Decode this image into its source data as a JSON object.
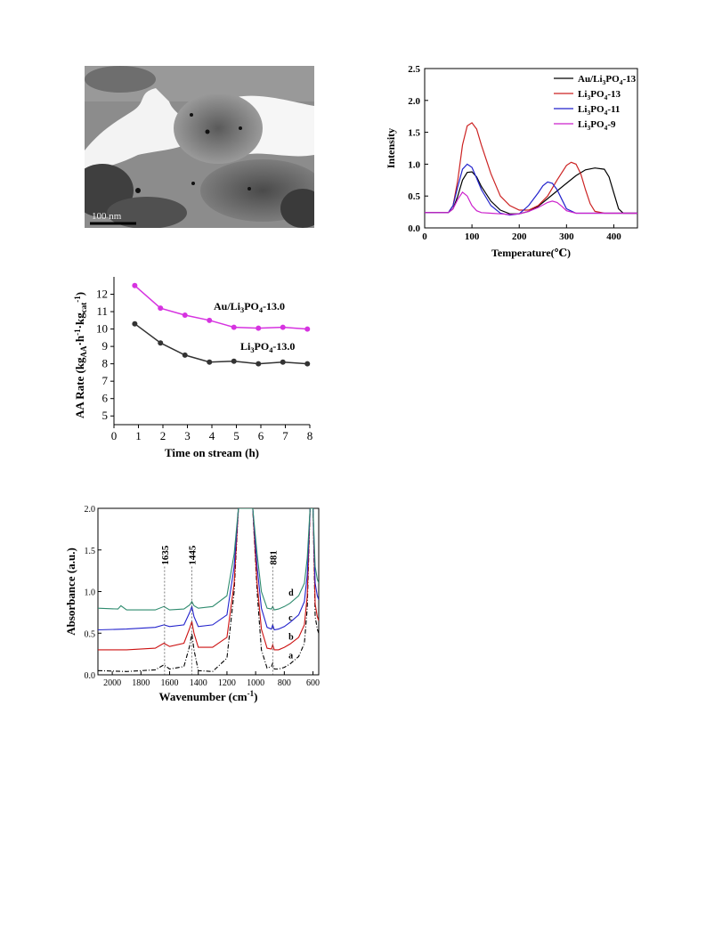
{
  "tem_image": {
    "scale_bar_label": "100 nm",
    "colors": {
      "background": "#8a8a8a",
      "dark": "#3a3a3a",
      "light": "#f2f2f2"
    }
  },
  "tpd_chart": {
    "chart_data": {
      "type": "line",
      "xlabel": "Temperature(℃)",
      "ylabel": "Intensity",
      "xlim": [
        0,
        450
      ],
      "ylim": [
        0,
        2.5
      ],
      "xticks": [
        0,
        100,
        200,
        300,
        400
      ],
      "yticks": [
        0.0,
        0.5,
        1.0,
        1.5,
        2.0,
        2.5
      ],
      "legend_position": "top-right",
      "series": [
        {
          "name": "Au/Li3PO4-13",
          "color": "#000000",
          "x": [
            0,
            50,
            60,
            70,
            80,
            90,
            100,
            110,
            120,
            140,
            160,
            180,
            200,
            220,
            240,
            260,
            280,
            300,
            320,
            340,
            360,
            380,
            390,
            400,
            410,
            420,
            450
          ],
          "y": [
            0.24,
            0.24,
            0.3,
            0.5,
            0.75,
            0.87,
            0.88,
            0.8,
            0.65,
            0.42,
            0.28,
            0.22,
            0.22,
            0.26,
            0.34,
            0.46,
            0.58,
            0.7,
            0.82,
            0.91,
            0.94,
            0.92,
            0.8,
            0.55,
            0.3,
            0.23,
            0.23
          ]
        },
        {
          "name": "Li3PO4-13",
          "color": "#cc2222",
          "x": [
            0,
            50,
            60,
            70,
            80,
            90,
            100,
            110,
            120,
            140,
            160,
            180,
            200,
            220,
            240,
            260,
            280,
            300,
            310,
            320,
            330,
            340,
            350,
            360,
            380,
            450
          ],
          "y": [
            0.24,
            0.24,
            0.35,
            0.75,
            1.3,
            1.6,
            1.65,
            1.55,
            1.3,
            0.85,
            0.5,
            0.35,
            0.28,
            0.28,
            0.35,
            0.5,
            0.75,
            0.98,
            1.03,
            1.0,
            0.85,
            0.6,
            0.38,
            0.26,
            0.23,
            0.23
          ]
        },
        {
          "name": "Li3PO4-11",
          "color": "#2222cc",
          "x": [
            0,
            50,
            60,
            70,
            80,
            90,
            100,
            110,
            120,
            140,
            160,
            180,
            200,
            220,
            240,
            250,
            260,
            270,
            280,
            290,
            300,
            320,
            340,
            450
          ],
          "y": [
            0.24,
            0.24,
            0.35,
            0.65,
            0.92,
            1.0,
            0.95,
            0.78,
            0.6,
            0.35,
            0.23,
            0.2,
            0.22,
            0.35,
            0.55,
            0.66,
            0.72,
            0.7,
            0.6,
            0.45,
            0.3,
            0.23,
            0.23,
            0.23
          ]
        },
        {
          "name": "Li3PO4-9",
          "color": "#cc22cc",
          "x": [
            0,
            50,
            60,
            70,
            80,
            90,
            100,
            110,
            120,
            140,
            160,
            180,
            200,
            220,
            240,
            260,
            270,
            280,
            290,
            300,
            320,
            450
          ],
          "y": [
            0.24,
            0.24,
            0.3,
            0.45,
            0.56,
            0.5,
            0.35,
            0.27,
            0.24,
            0.23,
            0.22,
            0.21,
            0.22,
            0.26,
            0.32,
            0.4,
            0.42,
            0.4,
            0.34,
            0.27,
            0.23,
            0.23
          ]
        }
      ],
      "legend_labels": [
        {
          "pre": "Au/Li",
          "sub1": "3",
          "mid": "PO",
          "sub2": "4",
          "post": "-13"
        },
        {
          "pre": "Li",
          "sub1": "3",
          "mid": "PO",
          "sub2": "4",
          "post": "-13"
        },
        {
          "pre": "Li",
          "sub1": "3",
          "mid": "PO",
          "sub2": "4",
          "post": "-11"
        },
        {
          "pre": "Li",
          "sub1": "3",
          "mid": "PO",
          "sub2": "4",
          "post": "-9"
        }
      ]
    }
  },
  "rate_chart": {
    "chart_data": {
      "type": "line",
      "xlabel": "Time on stream (h)",
      "ylabel_parts": {
        "main": "AA Rate (kg",
        "sub1": "AA",
        "mid1": "·h",
        "sup1": "-1",
        "mid2": "·kg",
        "sub2": "cat",
        "sup2": "-1",
        "end": ")"
      },
      "xlim": [
        0,
        8
      ],
      "ylim": [
        4.5,
        13
      ],
      "xticks": [
        0,
        1,
        2,
        3,
        4,
        5,
        6,
        7,
        8
      ],
      "yticks": [
        5,
        6,
        7,
        8,
        9,
        10,
        11,
        12
      ],
      "series": [
        {
          "name": "Au/Li3PO4-13.0",
          "color": "#d633e0",
          "x": [
            0.85,
            1.9,
            2.9,
            3.9,
            4.9,
            5.9,
            6.9,
            7.9
          ],
          "y": [
            12.5,
            11.2,
            10.8,
            10.5,
            10.1,
            10.05,
            10.1,
            10.0
          ]
        },
        {
          "name": "Li3PO4-13.0",
          "color": "#333333",
          "x": [
            0.85,
            1.9,
            2.9,
            3.9,
            4.9,
            5.9,
            6.9,
            7.9
          ],
          "y": [
            10.3,
            9.2,
            8.5,
            8.1,
            8.15,
            8.0,
            8.1,
            8.0
          ]
        }
      ],
      "annotations": [
        {
          "pre": "Au/Li",
          "sub1": "3",
          "mid": "PO",
          "sub2": "4",
          "post": "-13.0"
        },
        {
          "pre": "Li",
          "sub1": "3",
          "mid": "PO",
          "sub2": "4",
          "post": "-13.0"
        }
      ]
    }
  },
  "ftir_chart": {
    "chart_data": {
      "type": "line",
      "xlabel": "Wavenumber (cm",
      "xlabel_sup": "-1",
      "xlabel_end": ")",
      "ylabel": "Absorbance (a.u.)",
      "xlim": [
        2100,
        560
      ],
      "ylim": [
        0,
        2.0
      ],
      "xticks": [
        2000,
        1800,
        1600,
        1400,
        1200,
        1000,
        800,
        600
      ],
      "yticks": [
        0.0,
        0.5,
        1.0,
        1.5,
        2.0
      ],
      "reference_lines": [
        1635,
        1445,
        881
      ],
      "peak_labels": [
        "1635",
        "1445",
        "881"
      ],
      "curve_labels": [
        "a",
        "b",
        "c",
        "d"
      ],
      "series": [
        {
          "name": "a",
          "color": "#000000",
          "dashed": true,
          "x": [
            2100,
            1900,
            1700,
            1640,
            1600,
            1500,
            1460,
            1445,
            1430,
            1400,
            1300,
            1200,
            1150,
            1120,
            1100,
            1060,
            1020,
            990,
            960,
            920,
            890,
            881,
            870,
            840,
            800,
            760,
            700,
            660,
            640,
            620,
            600,
            585,
            570,
            560
          ],
          "y": [
            0.05,
            0.04,
            0.06,
            0.12,
            0.07,
            0.1,
            0.35,
            0.5,
            0.3,
            0.05,
            0.04,
            0.2,
            1.0,
            2.0,
            2.0,
            2.0,
            2.0,
            1.0,
            0.3,
            0.08,
            0.1,
            0.14,
            0.07,
            0.07,
            0.09,
            0.13,
            0.22,
            0.38,
            0.8,
            2.0,
            2.0,
            0.7,
            0.55,
            0.5
          ]
        },
        {
          "name": "b",
          "color": "#cc1111",
          "dashed": false,
          "x": [
            2100,
            1900,
            1700,
            1640,
            1600,
            1500,
            1460,
            1445,
            1430,
            1400,
            1300,
            1200,
            1150,
            1120,
            1100,
            1060,
            1020,
            990,
            960,
            920,
            890,
            881,
            870,
            840,
            800,
            760,
            700,
            660,
            640,
            620,
            600,
            585,
            570,
            560
          ],
          "y": [
            0.3,
            0.3,
            0.32,
            0.38,
            0.34,
            0.38,
            0.56,
            0.64,
            0.5,
            0.33,
            0.33,
            0.45,
            1.1,
            2.0,
            2.0,
            2.0,
            2.0,
            1.1,
            0.55,
            0.32,
            0.31,
            0.36,
            0.3,
            0.3,
            0.33,
            0.37,
            0.45,
            0.6,
            0.95,
            2.0,
            2.0,
            0.85,
            0.7,
            0.65
          ]
        },
        {
          "name": "c",
          "color": "#2222cc",
          "dashed": false,
          "x": [
            2100,
            1900,
            1700,
            1640,
            1600,
            1500,
            1460,
            1445,
            1430,
            1400,
            1300,
            1200,
            1150,
            1120,
            1100,
            1060,
            1020,
            990,
            960,
            920,
            890,
            881,
            870,
            840,
            800,
            760,
            700,
            660,
            640,
            620,
            600,
            585,
            570,
            560
          ],
          "y": [
            0.54,
            0.55,
            0.57,
            0.6,
            0.58,
            0.6,
            0.75,
            0.82,
            0.7,
            0.58,
            0.6,
            0.72,
            1.3,
            2.0,
            2.0,
            2.0,
            2.0,
            1.3,
            0.8,
            0.57,
            0.55,
            0.6,
            0.54,
            0.55,
            0.58,
            0.63,
            0.72,
            0.88,
            1.2,
            2.0,
            2.0,
            1.1,
            0.95,
            0.9
          ]
        },
        {
          "name": "d",
          "color": "#2e8b6e",
          "dashed": false,
          "x": [
            2100,
            1960,
            1940,
            1900,
            1700,
            1640,
            1600,
            1500,
            1460,
            1445,
            1430,
            1400,
            1300,
            1200,
            1150,
            1120,
            1100,
            1060,
            1020,
            990,
            960,
            920,
            890,
            881,
            870,
            840,
            800,
            760,
            700,
            660,
            640,
            620,
            600,
            585,
            570,
            560
          ],
          "y": [
            0.8,
            0.79,
            0.83,
            0.78,
            0.78,
            0.82,
            0.78,
            0.79,
            0.84,
            0.88,
            0.83,
            0.8,
            0.82,
            0.95,
            1.45,
            2.0,
            2.0,
            2.0,
            2.0,
            1.45,
            1.0,
            0.8,
            0.79,
            0.82,
            0.78,
            0.79,
            0.82,
            0.86,
            0.95,
            1.1,
            1.4,
            2.0,
            2.0,
            1.3,
            1.15,
            1.1
          ]
        }
      ]
    }
  }
}
